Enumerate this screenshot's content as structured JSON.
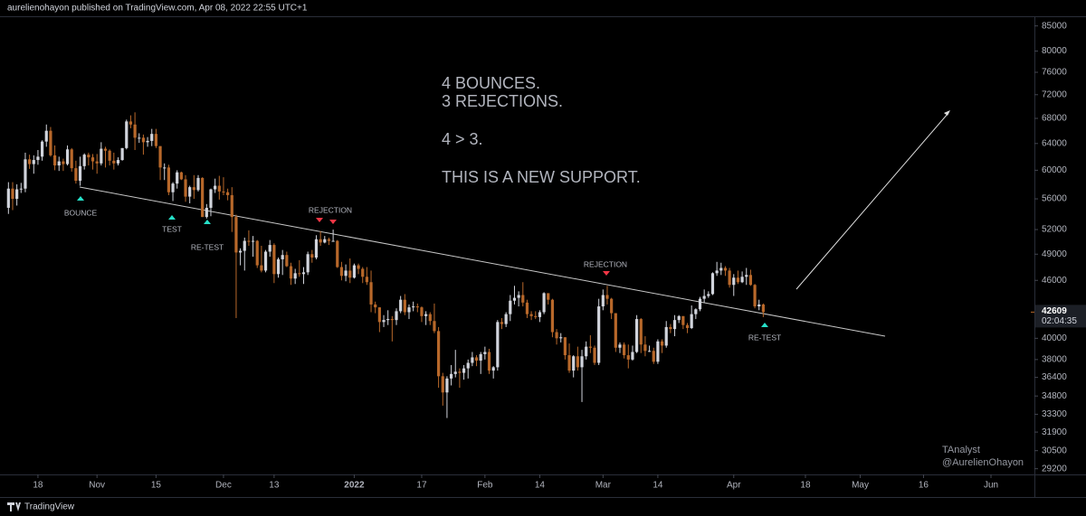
{
  "header": {
    "text": "aurelienohayon published on TradingView.com, Apr 08, 2022 22:55 UTC+1"
  },
  "chart_data": {
    "type": "candlestick",
    "log_scale": true,
    "up_color": "#d1d4dc",
    "down_color": "#b8682a",
    "open": [
      54800,
      57400,
      56000,
      57300,
      57400,
      61600,
      60900,
      61500,
      62000,
      64300,
      66000,
      62200,
      60700,
      61300,
      60900,
      63100,
      60300,
      58500,
      60600,
      62300,
      61900,
      61300,
      61000,
      63200,
      62900,
      61400,
      61000,
      61500,
      63300,
      67500,
      67000,
      64900,
      64900,
      64200,
      64400,
      65500,
      63600,
      60400,
      60400,
      56900,
      58100,
      59700,
      58700,
      56300,
      57600,
      57200,
      58900,
      53600,
      54800,
      57300,
      57800,
      57000,
      56900,
      56500,
      53600,
      49200,
      49400,
      50600,
      50500,
      50600,
      47700,
      47100,
      49300,
      50100,
      46700,
      48400,
      48900,
      47600,
      46200,
      46800,
      46700,
      46900,
      49000,
      48600,
      50800,
      50400,
      50800,
      50600,
      50600,
      47500,
      46500,
      47100,
      46300,
      47700,
      47300,
      46400,
      45800,
      43400,
      43100,
      41600,
      41800,
      41900,
      41800,
      42700,
      43900,
      42600,
      43100,
      43200,
      43100,
      42200,
      42400,
      41700,
      40700,
      36500,
      35100,
      36300,
      36700,
      36900,
      36800,
      37200,
      37700,
      38200,
      37900,
      38500,
      38700,
      37000,
      37300,
      41600,
      41400,
      42400,
      43800,
      44100,
      44400,
      43600,
      42400,
      42200,
      42100,
      42600,
      44600,
      43900,
      40600,
      40000,
      40100,
      38400,
      37000,
      38300,
      37300,
      38300,
      39200,
      39100,
      37700,
      43200,
      44400,
      44000,
      42500,
      39100,
      39400,
      38400,
      38000,
      38700,
      41900,
      39400,
      38800,
      38800,
      37800,
      39700,
      39300,
      41100,
      40900,
      41800,
      42200,
      41300,
      41000,
      42400,
      42900,
      44000,
      44300,
      44500,
      46800,
      47100,
      47400,
      47100,
      45500,
      46300,
      45800,
      46400,
      46600,
      45500,
      43200,
      43400
    ],
    "high": [
      58300,
      58300,
      58000,
      58200,
      62600,
      62300,
      62200,
      63000,
      64500,
      67000,
      66600,
      63700,
      62000,
      61700,
      63700,
      63300,
      61400,
      62000,
      62500,
      62600,
      62400,
      62400,
      64200,
      63500,
      63100,
      62600,
      61900,
      63300,
      67800,
      68500,
      69000,
      65600,
      65400,
      65000,
      66300,
      66300,
      63600,
      61000,
      60800,
      58300,
      60000,
      59800,
      59300,
      57800,
      59300,
      59300,
      59000,
      55300,
      57400,
      58800,
      59200,
      59000,
      57400,
      57600,
      53900,
      49700,
      51000,
      51900,
      51200,
      50700,
      50000,
      49500,
      50700,
      50300,
      48600,
      49500,
      49300,
      48000,
      47300,
      48300,
      47500,
      49300,
      49500,
      51300,
      51800,
      51200,
      51000,
      52000,
      50700,
      48100,
      47800,
      48500,
      47900,
      47900,
      47500,
      47500,
      47100,
      43700,
      43100,
      42300,
      42800,
      42200,
      43000,
      44300,
      44500,
      43400,
      43700,
      43500,
      43200,
      42700,
      42600,
      43500,
      41100,
      36800,
      36500,
      37500,
      38900,
      37200,
      37500,
      38000,
      38700,
      38400,
      38700,
      39200,
      39000,
      37400,
      41800,
      42000,
      42600,
      44400,
      45400,
      44800,
      45800,
      43900,
      42700,
      42700,
      42800,
      44700,
      44600,
      44000,
      40900,
      40500,
      40100,
      39500,
      38400,
      39200,
      38900,
      39700,
      40300,
      39300,
      44000,
      45000,
      45400,
      44100,
      42500,
      39600,
      39600,
      39400,
      39300,
      42300,
      42000,
      40200,
      39300,
      39100,
      39900,
      39900,
      41700,
      41400,
      42300,
      42300,
      42200,
      41500,
      43300,
      43000,
      44200,
      45000,
      44800,
      46900,
      48100,
      48000,
      47600,
      47400,
      46700,
      47100,
      47000,
      47400,
      47200,
      45600,
      43900,
      43500
    ],
    "low": [
      54000,
      54500,
      55100,
      56800,
      56900,
      60200,
      59500,
      60800,
      61400,
      63500,
      62000,
      60000,
      59900,
      59900,
      60700,
      59800,
      58100,
      57800,
      60100,
      60700,
      60100,
      59500,
      60700,
      60400,
      60700,
      60100,
      60700,
      61400,
      63100,
      66400,
      63000,
      64100,
      62300,
      63500,
      63600,
      63300,
      58600,
      58600,
      56500,
      55700,
      57400,
      58600,
      55600,
      55400,
      56000,
      57000,
      53600,
      53400,
      53700,
      56800,
      55900,
      56500,
      55800,
      51700,
      42000,
      47700,
      47100,
      50000,
      48700,
      47400,
      46900,
      46900,
      48700,
      45700,
      46300,
      46600,
      47500,
      45500,
      45600,
      46400,
      45600,
      46600,
      48000,
      48400,
      50000,
      50300,
      50100,
      50500,
      47400,
      46000,
      45900,
      45700,
      46200,
      46700,
      45700,
      45500,
      42600,
      42500,
      40600,
      41100,
      41300,
      39700,
      41300,
      42500,
      42300,
      41900,
      42700,
      42600,
      41600,
      41300,
      41300,
      40500,
      35500,
      34000,
      33000,
      35700,
      36400,
      35500,
      36200,
      36300,
      37400,
      37400,
      36700,
      38000,
      36700,
      36300,
      37000,
      40900,
      41100,
      41700,
      43400,
      43200,
      43200,
      42000,
      41800,
      41900,
      41600,
      42400,
      43400,
      40100,
      39400,
      39600,
      38000,
      36800,
      36400,
      37000,
      34300,
      38000,
      38600,
      37500,
      37500,
      42800,
      43400,
      41900,
      38700,
      38600,
      38100,
      37200,
      37900,
      38600,
      38600,
      38300,
      38700,
      37600,
      37600,
      38600,
      39100,
      40500,
      40200,
      41500,
      40900,
      40500,
      40900,
      41900,
      42700,
      43600,
      44100,
      44400,
      46500,
      46600,
      46500,
      45200,
      44300,
      45600,
      45700,
      45500,
      45400,
      43000,
      42800,
      42100
    ],
    "close": [
      57400,
      56000,
      57300,
      57400,
      61600,
      60900,
      61500,
      62000,
      64300,
      66000,
      62200,
      60700,
      61300,
      60900,
      63100,
      60300,
      58500,
      60600,
      62300,
      61900,
      61300,
      61000,
      63200,
      62900,
      61400,
      61000,
      61500,
      63300,
      67500,
      67000,
      64900,
      64900,
      64200,
      64400,
      65500,
      63600,
      60400,
      60400,
      56900,
      58100,
      59700,
      58700,
      56300,
      57600,
      57200,
      58900,
      53600,
      54800,
      57300,
      57800,
      57000,
      56900,
      56500,
      53600,
      49200,
      49400,
      50600,
      50500,
      50600,
      47700,
      47100,
      49300,
      50100,
      46700,
      48400,
      48900,
      47600,
      46200,
      46800,
      46700,
      46900,
      49000,
      48600,
      50800,
      50400,
      50800,
      50600,
      50600,
      47500,
      46500,
      47100,
      46300,
      47700,
      47300,
      46400,
      45800,
      43400,
      43100,
      41600,
      41800,
      41900,
      41800,
      42700,
      43900,
      42600,
      43100,
      43200,
      43100,
      42200,
      42400,
      41700,
      40700,
      36500,
      35100,
      36300,
      36700,
      36900,
      36800,
      37200,
      37700,
      38200,
      37900,
      38500,
      38700,
      37000,
      37300,
      41600,
      41400,
      42400,
      43800,
      44100,
      44400,
      43600,
      42400,
      42200,
      42100,
      42600,
      44600,
      43900,
      40600,
      40000,
      40100,
      38400,
      37000,
      38300,
      37300,
      38300,
      39200,
      39100,
      37700,
      43200,
      44400,
      44000,
      42500,
      39100,
      39400,
      38400,
      38000,
      38700,
      41900,
      39400,
      38800,
      38800,
      37800,
      39700,
      39300,
      41100,
      40900,
      41800,
      42200,
      41300,
      41000,
      42400,
      42900,
      44000,
      44300,
      44500,
      46800,
      47100,
      47400,
      47100,
      45500,
      46300,
      45800,
      46400,
      46600,
      45500,
      43200,
      43400,
      42609
    ],
    "xlim": [
      -2,
      243.3
    ],
    "xticks": [
      {
        "value": 7,
        "label": "18"
      },
      {
        "value": 21,
        "label": "Nov"
      },
      {
        "value": 35,
        "label": "15"
      },
      {
        "value": 51,
        "label": "Dec"
      },
      {
        "value": 63,
        "label": "13"
      },
      {
        "value": 82,
        "label": "2022"
      },
      {
        "value": 98,
        "label": "17"
      },
      {
        "value": 113,
        "label": "Feb"
      },
      {
        "value": 126,
        "label": "14"
      },
      {
        "value": 141,
        "label": "Mar"
      },
      {
        "value": 154,
        "label": "14"
      },
      {
        "value": 172,
        "label": "Apr"
      },
      {
        "value": 189,
        "label": "18"
      },
      {
        "value": 202,
        "label": "May"
      },
      {
        "value": 217,
        "label": "16"
      },
      {
        "value": 233,
        "label": "Jun"
      }
    ],
    "ylim": [
      28800,
      87000
    ],
    "yticks": [
      85000,
      80000,
      76000,
      72000,
      68000,
      64000,
      60000,
      56000,
      52000,
      49000,
      46000,
      40000,
      38000,
      36400,
      34800,
      33300,
      31900,
      30500,
      29200
    ],
    "last_price": 42609,
    "countdown": "02:04:35",
    "annotations": [
      "BOUNCE",
      "TEST",
      "RE-TEST",
      "REJECTION",
      "REJECTION",
      "RE-TEST"
    ],
    "text_lines": [
      "4 BOUNCES.",
      "3 REJECTIONS.",
      "4 > 3.",
      "THIS IS A NEW SUPPORT."
    ],
    "watermark": [
      "TAnalyst",
      "@AurelienOhayon"
    ]
  },
  "footer": {
    "brand": "TradingView"
  }
}
